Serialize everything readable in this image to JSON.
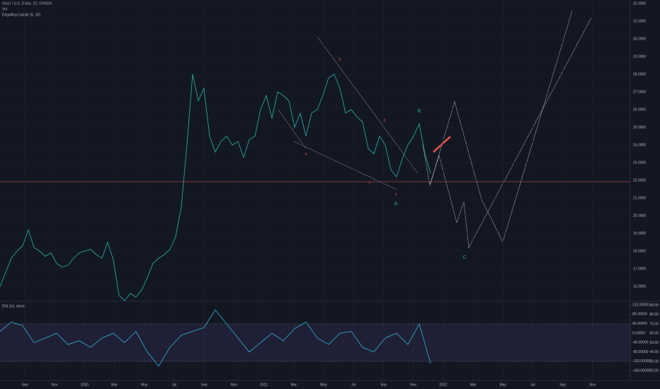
{
  "chart_data": [
    {
      "type": "line",
      "title": "Silver / U.S. Dollar, 1D, OANDA",
      "subtitle": "Vol",
      "annotation": "Engulfing Candle (5, 10)",
      "color": "#26a69a",
      "values": [
        16.0,
        16.8,
        17.6,
        18.0,
        18.3,
        19.2,
        18.2,
        18.0,
        17.7,
        17.9,
        17.3,
        17.1,
        17.2,
        17.6,
        17.9,
        18.0,
        18.1,
        17.8,
        17.6,
        18.5,
        17.5,
        15.5,
        15.2,
        15.6,
        15.4,
        15.8,
        16.5,
        17.3,
        17.6,
        17.8,
        18.1,
        18.8,
        20.5,
        24.0,
        28.0,
        26.5,
        27.2,
        24.5,
        23.6,
        24.2,
        24.5,
        24.0,
        24.2,
        23.3,
        24.3,
        24.5,
        26.0,
        26.8,
        25.5,
        27.0,
        26.8,
        26.5,
        25.0,
        25.8,
        24.5,
        25.8,
        26.0,
        26.8,
        27.8,
        28.0,
        27.2,
        25.8,
        26.0,
        25.6,
        25.3,
        23.8,
        23.5,
        24.5,
        24.0,
        22.6,
        22.2,
        23.2,
        24.0,
        24.5,
        25.2,
        23.5,
        22.4
      ],
      "ylim": [
        15.2,
        32.2
      ],
      "yticks": [
        {
          "value": 16,
          "label": "16.0000"
        },
        {
          "value": 17,
          "label": "17.0000"
        },
        {
          "value": 18,
          "label": "18.0000"
        },
        {
          "value": 19,
          "label": "19.0000"
        },
        {
          "value": 20,
          "label": "20.0000"
        },
        {
          "value": 21,
          "label": "21.0000"
        },
        {
          "value": 22,
          "label": "22.0000"
        },
        {
          "value": 23,
          "label": "23.0000"
        },
        {
          "value": 24,
          "label": "24.0000"
        },
        {
          "value": 25,
          "label": "25.0000"
        },
        {
          "value": 26,
          "label": "26.0000"
        },
        {
          "value": 27,
          "label": "27.0000"
        },
        {
          "value": 28,
          "label": "28.0000"
        },
        {
          "value": 29,
          "label": "29.0000"
        },
        {
          "value": 30,
          "label": "30.0000"
        },
        {
          "value": 31,
          "label": "31.0000"
        },
        {
          "value": 32,
          "label": "32.0000"
        }
      ],
      "wave_labels": [
        "a",
        "b",
        "c",
        "d",
        "e",
        "A",
        "B",
        "C"
      ],
      "x_labels": [
        "Sep",
        "Nov",
        "2020",
        "Mar",
        "May",
        "Jul",
        "Sep",
        "Nov",
        "2021",
        "Mar",
        "May",
        "Jul",
        "Sep",
        "Nov",
        "2022",
        "Mar",
        "May",
        "Jul",
        "Sep",
        "Nov"
      ],
      "grid": true
    },
    {
      "type": "line",
      "title": "RSI (14, close)",
      "color": "#2fa3c4",
      "values": [
        62,
        72,
        68,
        50,
        55,
        60,
        48,
        52,
        45,
        55,
        60,
        50,
        62,
        40,
        25,
        45,
        58,
        62,
        66,
        85,
        70,
        55,
        40,
        50,
        60,
        52,
        65,
        72,
        55,
        48,
        60,
        62,
        45,
        40,
        55,
        60,
        48,
        70,
        28
      ],
      "ylim": [
        10.4,
        92.6
      ],
      "yticks": [
        {
          "value": 20,
          "label": "20.00"
        },
        {
          "value": 30,
          "label": "30.00"
        },
        {
          "value": 40,
          "label": "40.00"
        },
        {
          "value": 50,
          "label": "50.00"
        },
        {
          "value": 60,
          "label": "60.00"
        },
        {
          "value": 70,
          "label": "70.00"
        },
        {
          "value": 80,
          "label": "80.00"
        },
        {
          "value": 90,
          "label": "90.00"
        }
      ],
      "y2lim": [
        -198.5,
        129.3
      ],
      "y2ticks": [
        {
          "value": -160,
          "label": "-160.00000"
        },
        {
          "value": -120,
          "label": "-120.00000"
        },
        {
          "value": -80,
          "label": "-80.00000"
        },
        {
          "value": -40,
          "label": "-40.00000"
        },
        {
          "value": 0,
          "label": "0.00000"
        },
        {
          "value": 40,
          "label": "40.00000"
        },
        {
          "value": 80,
          "label": "80.00000"
        },
        {
          "value": 120,
          "label": "120.00000"
        }
      ],
      "band": [
        30,
        70
      ]
    }
  ]
}
